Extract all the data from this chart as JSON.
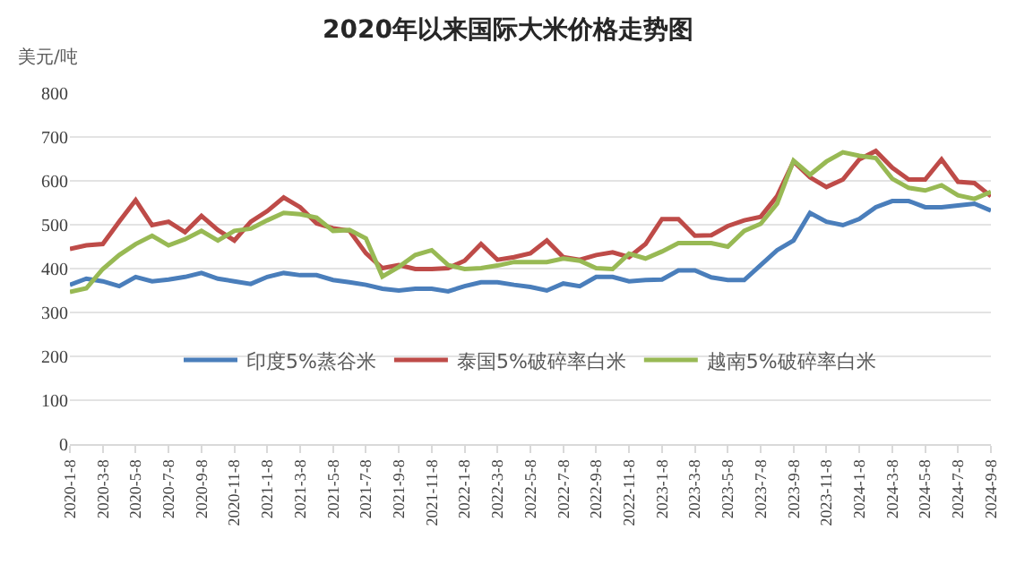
{
  "chart_data": {
    "type": "line",
    "title": "2020年以来国际大米价格走势图",
    "ylabel": "美元/吨",
    "categories": [
      "2020-1-8",
      null,
      "2020-3-8",
      null,
      "2020-5-8",
      null,
      "2020-7-8",
      null,
      "2020-9-8",
      null,
      "2020-11-8",
      null,
      "2021-1-8",
      null,
      "2021-3-8",
      null,
      "2021-5-8",
      null,
      "2021-7-8",
      null,
      "2021-9-8",
      null,
      "2021-11-8",
      null,
      "2022-1-8",
      null,
      "2022-3-8",
      null,
      "2022-5-8",
      null,
      "2022-7-8",
      null,
      "2022-9-8",
      null,
      "2022-11-8",
      null,
      "2023-1-8",
      null,
      "2023-3-8",
      null,
      "2023-5-8",
      null,
      "2023-7-8",
      null,
      "2023-9-8",
      null,
      "2023-11-8",
      null,
      "2024-1-8",
      null,
      "2024-3-8",
      null,
      "2024-5-8",
      null,
      "2024-7-8",
      null,
      "2024-9-8"
    ],
    "series": [
      {
        "name": "印度5%蒸谷米",
        "color": "#4a7ebb",
        "values": [
          363,
          377,
          371,
          360,
          381,
          371,
          375,
          381,
          390,
          377,
          371,
          365,
          381,
          390,
          385,
          385,
          374,
          369,
          363,
          354,
          350,
          354,
          354,
          348,
          360,
          369,
          369,
          363,
          358,
          350,
          366,
          360,
          381,
          381,
          371,
          374,
          375,
          396,
          396,
          380,
          374,
          374,
          408,
          442,
          464,
          527,
          507,
          499,
          513,
          540,
          554,
          554,
          540,
          540,
          544,
          548,
          532
        ]
      },
      {
        "name": "泰国5%破碎率白米",
        "color": "#be4b48",
        "values": [
          445,
          453,
          456,
          507,
          556,
          499,
          507,
          483,
          520,
          488,
          464,
          507,
          531,
          562,
          540,
          503,
          492,
          486,
          435,
          401,
          408,
          399,
          399,
          401,
          418,
          456,
          420,
          426,
          435,
          464,
          426,
          420,
          431,
          437,
          426,
          456,
          513,
          513,
          475,
          476,
          497,
          510,
          518,
          565,
          644,
          608,
          586,
          603,
          649,
          668,
          630,
          603,
          603,
          649,
          598,
          595,
          565
        ]
      },
      {
        "name": "越南5%破碎率白米",
        "color": "#98b954",
        "values": [
          347,
          355,
          399,
          431,
          456,
          475,
          453,
          467,
          486,
          464,
          486,
          491,
          510,
          527,
          524,
          516,
          486,
          488,
          469,
          382,
          404,
          431,
          442,
          408,
          399,
          401,
          407,
          415,
          415,
          415,
          423,
          418,
          401,
          399,
          434,
          423,
          439,
          458,
          458,
          458,
          450,
          486,
          502,
          548,
          646,
          614,
          644,
          665,
          657,
          652,
          605,
          584,
          578,
          590,
          567,
          559,
          575
        ]
      }
    ],
    "ylim": [
      0,
      800
    ],
    "yticks": [
      0,
      100,
      200,
      300,
      400,
      500,
      600,
      700,
      800
    ],
    "grid": "y",
    "legend": "bottom",
    "marker": "none",
    "line_style": "solid"
  }
}
